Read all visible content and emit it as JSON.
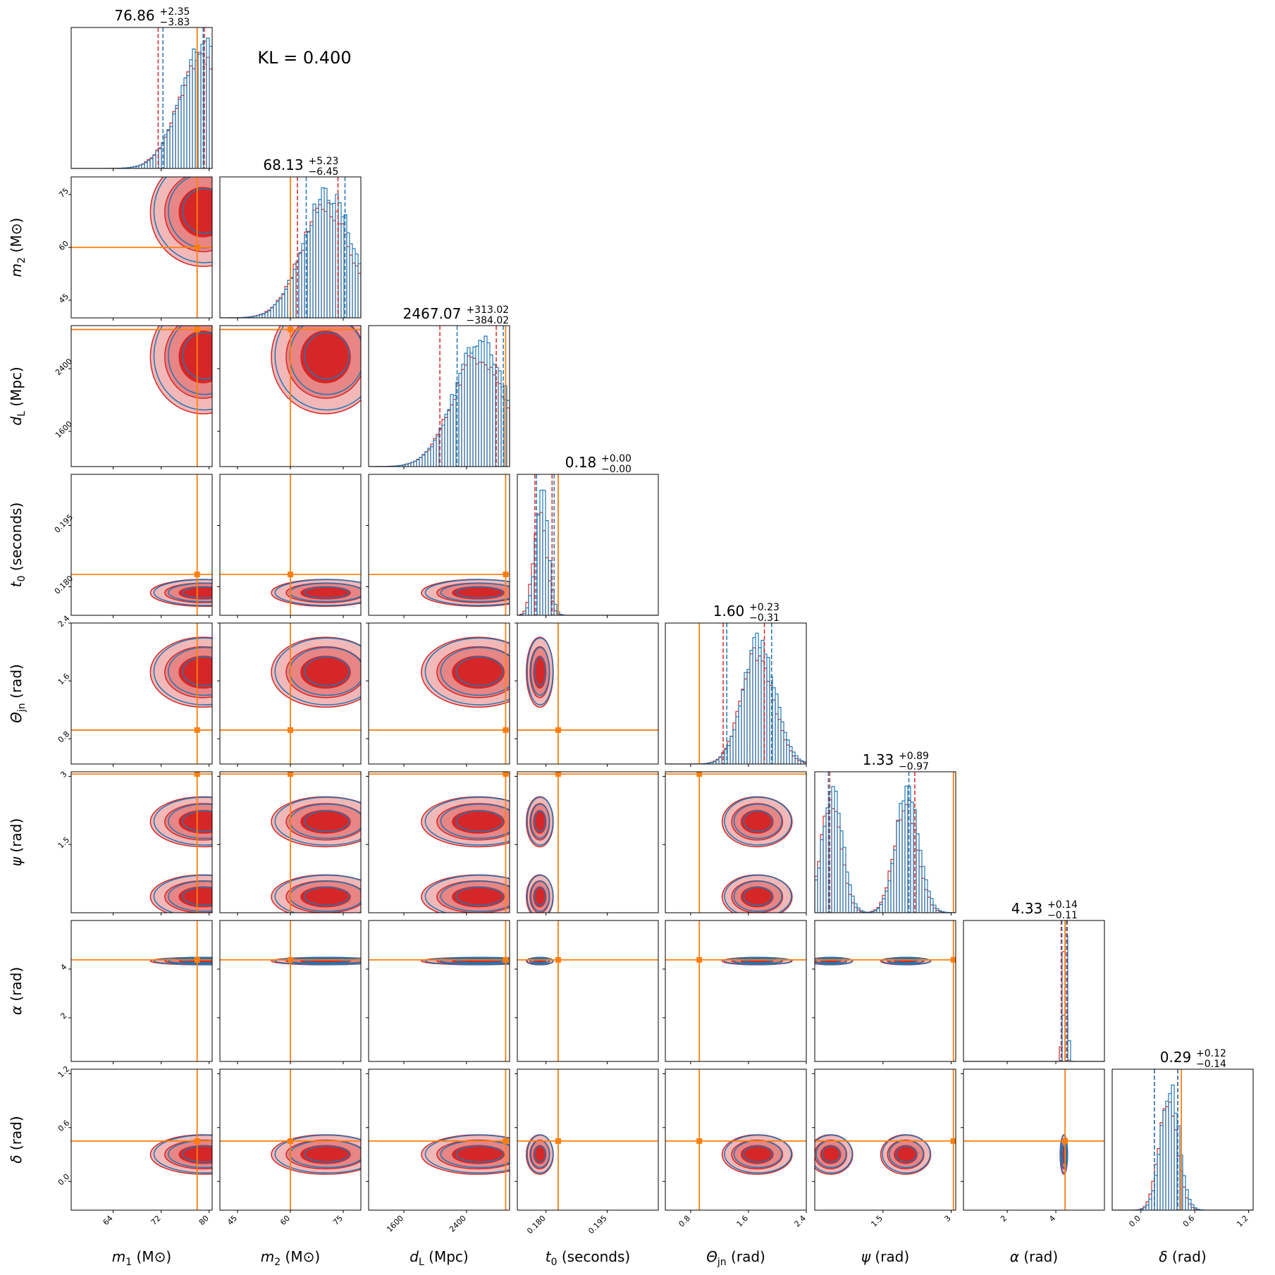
{
  "chart_data": {
    "type": "corner",
    "annotation": "KL = 0.400",
    "colors": {
      "series_a": "#d62728",
      "series_b": "#1f77b4",
      "truth": "#ff7f0e"
    },
    "parameters": [
      {
        "key": "m1",
        "label_main": "m",
        "label_sub": "1",
        "label_unit": "(M⊙)",
        "range": [
          57,
          80.5
        ],
        "ticks": [
          64,
          72,
          80
        ],
        "truth": 78,
        "median": "76.86",
        "plus": "+2.35",
        "minus": "−3.83",
        "q_a": [
          71.5,
          79.2
        ],
        "q_b": [
          72.3,
          79.0
        ]
      },
      {
        "key": "m2",
        "label_main": "m",
        "label_sub": "2",
        "label_unit": "(M⊙)",
        "range": [
          40,
          80
        ],
        "ticks": [
          45,
          60,
          75
        ],
        "truth": 60,
        "median": "68.13",
        "plus": "+5.23",
        "minus": "−6.45",
        "q_a": [
          62,
          73.5
        ],
        "q_b": [
          64.5,
          75.5
        ]
      },
      {
        "key": "dL",
        "label_main": "d",
        "label_sub": "L",
        "label_unit": "(Mpc)",
        "range": [
          1150,
          2950
        ],
        "ticks": [
          1600,
          2400
        ],
        "truth": 2900,
        "median": "2467.07",
        "plus": "+313.02",
        "minus": "−384.02",
        "q_a": [
          2060,
          2780
        ],
        "q_b": [
          2280,
          2870
        ]
      },
      {
        "key": "t0",
        "label_main": "t",
        "label_sub": "0",
        "label_unit": "(seconds)",
        "range": [
          0.173,
          0.2075
        ],
        "ticks": [
          0.18,
          0.195
        ],
        "tick_labels": [
          "0.180",
          "0.195"
        ],
        "truth": 0.183,
        "median": "0.18",
        "plus": "+0.00",
        "minus": "−0.00",
        "q_a": [
          0.1773,
          0.1815
        ],
        "q_b": [
          0.1777,
          0.182
        ]
      },
      {
        "key": "theta",
        "label_main": "Θ",
        "label_sub": "jn",
        "label_unit": "(rad)",
        "range": [
          0.45,
          2.4
        ],
        "ticks": [
          0.8,
          1.6,
          2.4
        ],
        "truth": 0.92,
        "median": "1.60",
        "plus": "+0.23",
        "minus": "−0.31",
        "q_a": [
          1.25,
          1.82
        ],
        "q_b": [
          1.3,
          1.92
        ]
      },
      {
        "key": "psi",
        "label_main": "ψ",
        "label_sub": "",
        "label_unit": "(rad)",
        "range": [
          0.0,
          3.1
        ],
        "ticks": [
          1.5,
          3.0
        ],
        "truth": 3.05,
        "median": "1.33",
        "plus": "+0.89",
        "minus": "−0.97",
        "q_a": [
          0.33,
          2.2
        ],
        "q_b": [
          0.3,
          2.07
        ]
      },
      {
        "key": "alpha",
        "label_main": "α",
        "label_sub": "",
        "label_unit": "(rad)",
        "range": [
          0.2,
          6.0
        ],
        "ticks": [
          2,
          4
        ],
        "truth": 4.38,
        "median": "4.33",
        "plus": "+0.14",
        "minus": "−0.11",
        "q_a": [
          4.22,
          4.47
        ],
        "q_b": [
          4.25,
          4.44
        ]
      },
      {
        "key": "delta",
        "label_main": "δ",
        "label_sub": "",
        "label_unit": "(rad)",
        "range": [
          -0.32,
          1.25
        ],
        "ticks": [
          0.0,
          0.6,
          1.2
        ],
        "tick_labels": [
          "0.0",
          "0.6",
          "1.2"
        ],
        "truth": 0.45,
        "median": "0.29",
        "plus": "+0.12",
        "minus": "−0.14",
        "q_a": [
          0.15,
          0.41
        ],
        "q_b": [
          0.15,
          0.41
        ]
      }
    ],
    "marginal_modes": [
      [
        79,
        4
      ],
      [
        70,
        7
      ],
      [
        2550,
        330
      ],
      [
        0.1785,
        0.0015
      ],
      [
        1.72,
        0.22
      ],
      [
        0.35,
        0.22,
        2.0,
        0.25
      ],
      [
        4.33,
        0.07
      ],
      [
        0.3,
        0.1
      ]
    ]
  }
}
